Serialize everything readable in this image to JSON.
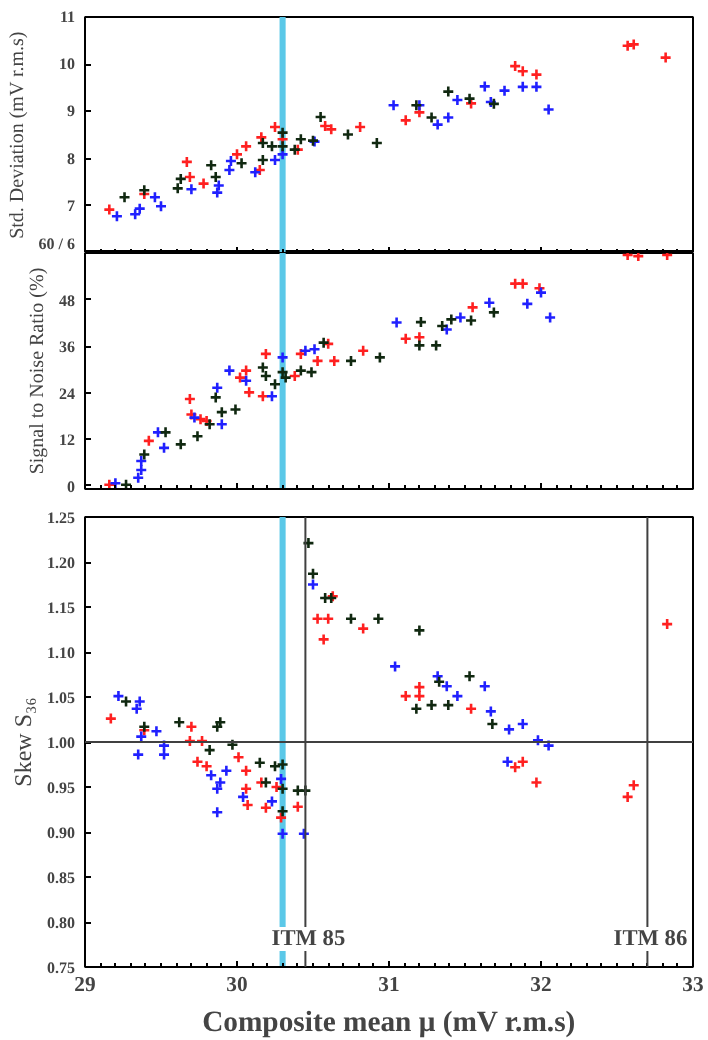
{
  "chart_data": [
    {
      "type": "scatter",
      "ylabel": "Std. Deviation (mV r.m.s)",
      "xlim": [
        29,
        33
      ],
      "ylim": [
        6,
        11
      ],
      "xticks": [
        {
          "value": 29,
          "label": null
        },
        {
          "value": 30,
          "label": null
        },
        {
          "value": 31,
          "label": null
        },
        {
          "value": 32,
          "label": null
        },
        {
          "value": 33,
          "label": null
        }
      ],
      "yticks": [
        {
          "value": 6,
          "label": "60 / 6"
        },
        7,
        8,
        9,
        10,
        11
      ],
      "tick_labels": "y",
      "grid": false,
      "marker": "cross",
      "bands": [
        {
          "axis": "x",
          "from": 30.28,
          "to": 30.32,
          "color": "#5bc8e8"
        }
      ],
      "series": [
        {
          "color": "#ff2020",
          "x": [
            29.16,
            29.39,
            29.67,
            29.69,
            29.78,
            30.0,
            30.06,
            30.15,
            30.16,
            30.25,
            30.3,
            30.4,
            30.58,
            30.62,
            30.81,
            31.11,
            31.2,
            31.54,
            31.83,
            31.88,
            31.97,
            32.57,
            32.61,
            32.82
          ],
          "values": [
            6.92,
            7.25,
            7.93,
            7.61,
            7.47,
            8.09,
            8.26,
            7.76,
            8.45,
            8.67,
            8.41,
            8.19,
            8.69,
            8.62,
            8.67,
            8.81,
            8.98,
            9.17,
            9.96,
            9.85,
            9.78,
            10.39,
            10.42,
            10.14
          ]
        },
        {
          "color": "#2020ff",
          "x": [
            29.21,
            29.33,
            29.36,
            29.46,
            29.5,
            29.7,
            29.87,
            29.88,
            29.95,
            29.96,
            30.12,
            30.25,
            30.3,
            30.51,
            31.03,
            31.2,
            31.32,
            31.39,
            31.45,
            31.63,
            31.67,
            31.76,
            31.88,
            31.97,
            32.05
          ],
          "values": [
            6.78,
            6.82,
            6.94,
            7.18,
            6.99,
            7.35,
            7.28,
            7.43,
            7.76,
            7.95,
            7.71,
            7.97,
            8.09,
            8.36,
            9.13,
            9.13,
            8.72,
            8.87,
            9.24,
            9.53,
            9.2,
            9.44,
            9.52,
            9.52,
            9.04
          ]
        },
        {
          "color": "#102810",
          "x": [
            29.26,
            29.39,
            29.61,
            29.63,
            29.83,
            29.86,
            30.03,
            30.17,
            30.17,
            30.23,
            30.3,
            30.3,
            30.38,
            30.42,
            30.5,
            30.55,
            30.73,
            30.92,
            31.18,
            31.28,
            31.39,
            31.53,
            31.69
          ],
          "values": [
            7.18,
            7.33,
            7.37,
            7.57,
            7.86,
            7.61,
            7.9,
            7.97,
            8.33,
            8.26,
            8.55,
            8.26,
            8.19,
            8.41,
            8.38,
            8.88,
            8.51,
            8.33,
            9.13,
            8.87,
            9.42,
            9.27,
            9.16
          ]
        }
      ]
    },
    {
      "type": "scatter",
      "ylabel": "Signal to Noise Ratio (%)",
      "xlim": [
        29,
        33
      ],
      "ylim": [
        -0.8,
        60
      ],
      "xticks": [
        {
          "value": 29,
          "label": null
        },
        {
          "value": 30,
          "label": null
        },
        {
          "value": 31,
          "label": null
        },
        {
          "value": 32,
          "label": null
        },
        {
          "value": 33,
          "label": null
        }
      ],
      "yticks": [
        0,
        12,
        24,
        36,
        48,
        {
          "value": 60,
          "label": null
        }
      ],
      "tick_labels": "y",
      "grid": false,
      "marker": "cross",
      "bands": [
        {
          "axis": "x",
          "from": 30.28,
          "to": 30.32,
          "color": "#5bc8e8"
        }
      ],
      "series": [
        {
          "color": "#ff2020",
          "x": [
            29.16,
            29.42,
            29.69,
            29.7,
            29.76,
            29.8,
            30.02,
            30.06,
            30.08,
            30.17,
            30.19,
            30.38,
            30.42,
            30.53,
            30.6,
            30.64,
            30.83,
            31.11,
            31.2,
            31.55,
            31.83,
            31.88,
            31.99,
            32.57,
            32.64,
            32.83
          ],
          "values": [
            0.3,
            11.6,
            22.4,
            18.4,
            17.2,
            16.7,
            27.9,
            29.7,
            24.1,
            23.1,
            34.0,
            28.3,
            34.0,
            32.2,
            36.6,
            32.2,
            34.8,
            37.9,
            38.3,
            46.0,
            52.1,
            52.1,
            50.9,
            59.5,
            59.2,
            59.5
          ]
        },
        {
          "color": "#2020ff",
          "x": [
            29.2,
            29.35,
            29.37,
            29.37,
            29.48,
            29.52,
            29.72,
            29.87,
            29.9,
            29.95,
            30.06,
            30.23,
            30.3,
            30.45,
            30.51,
            31.05,
            31.38,
            31.47,
            31.66,
            31.91,
            32.0,
            32.06
          ],
          "values": [
            0.7,
            2.1,
            4.1,
            6.4,
            13.8,
            9.8,
            17.6,
            25.3,
            15.9,
            29.7,
            27.1,
            23.1,
            33.1,
            34.8,
            35.2,
            42.1,
            40.3,
            43.4,
            47.2,
            46.9,
            49.8,
            43.4
          ]
        },
        {
          "color": "#102810",
          "x": [
            29.27,
            29.39,
            29.53,
            29.63,
            29.74,
            29.82,
            29.86,
            29.9,
            29.99,
            30.17,
            30.19,
            30.25,
            30.3,
            30.32,
            30.42,
            30.49,
            30.57,
            30.75,
            30.94,
            31.2,
            31.31,
            31.21,
            31.35,
            31.41,
            31.54,
            31.69
          ],
          "values": [
            0.3,
            8.1,
            13.8,
            10.7,
            12.8,
            15.9,
            22.8,
            19.0,
            19.7,
            30.5,
            28.3,
            26.2,
            29.3,
            27.9,
            29.7,
            29.3,
            36.9,
            32.2,
            33.1,
            36.2,
            36.2,
            42.2,
            41.2,
            42.9,
            42.6,
            44.7
          ]
        }
      ]
    },
    {
      "type": "scatter",
      "xlabel": "Composite mean μ (mV r.m.s)",
      "ylabel": "Skew S₃₆",
      "xlim": [
        29,
        33
      ],
      "ylim": [
        0.75,
        1.25
      ],
      "xticks": [
        29,
        30,
        31,
        32,
        33
      ],
      "yticks": [
        {
          "value": 0.75,
          "label": "0.75"
        },
        {
          "value": 0.8,
          "label": "0.80"
        },
        {
          "value": 0.85,
          "label": "0.85"
        },
        {
          "value": 0.9,
          "label": "0.90"
        },
        {
          "value": 0.95,
          "label": "0.95"
        },
        {
          "value": 1.0,
          "label": "1.00"
        },
        {
          "value": 1.05,
          "label": "1.05"
        },
        {
          "value": 1.1,
          "label": "1.10"
        },
        {
          "value": 1.15,
          "label": "1.15"
        },
        {
          "value": 1.2,
          "label": "1.20"
        },
        {
          "value": 1.25,
          "label": "1.25"
        }
      ],
      "grid": false,
      "marker": "cross",
      "bands": [
        {
          "axis": "x",
          "from": 30.28,
          "to": 30.32,
          "color": "#5bc8e8"
        }
      ],
      "ref_lines": [
        {
          "axis": "y",
          "value": 1.0,
          "color": "#404040"
        },
        {
          "axis": "x",
          "value": 30.45,
          "label": "ITM 85",
          "color": "#404040"
        },
        {
          "axis": "x",
          "value": 32.7,
          "label": "ITM 86",
          "color": "#404040"
        }
      ],
      "series": [
        {
          "color": "#ff2020",
          "x": [
            29.17,
            29.39,
            29.7,
            29.69,
            29.77,
            30.63,
            30.53,
            30.6,
            30.57,
            30.83,
            31.11,
            31.2,
            31.2,
            31.54,
            32.83,
            29.74,
            29.8,
            30.01,
            30.06,
            30.07,
            30.16,
            30.26,
            30.29,
            30.19,
            30.4,
            30.06,
            31.83,
            31.88,
            31.97,
            32.57,
            32.61
          ],
          "values": [
            1.026,
            1.013,
            1.017,
            1.001,
            1.001,
            1.162,
            1.137,
            1.137,
            1.114,
            1.126,
            1.051,
            1.051,
            1.061,
            1.037,
            1.131,
            0.978,
            0.973,
            0.983,
            0.948,
            0.93,
            0.955,
            0.95,
            0.916,
            0.927,
            0.928,
            0.968,
            0.972,
            0.978,
            0.955,
            0.939,
            0.952
          ]
        },
        {
          "color": "#2020ff",
          "x": [
            29.22,
            29.34,
            29.36,
            29.35,
            29.37,
            29.47,
            29.52,
            29.52,
            30.5,
            31.04,
            31.32,
            31.38,
            31.45,
            31.63,
            31.67,
            31.79,
            31.88,
            31.98,
            32.05,
            29.83,
            29.87,
            29.89,
            29.87,
            29.93,
            30.04,
            30.23,
            30.3,
            30.44,
            30.29,
            31.78
          ],
          "values": [
            1.051,
            1.037,
            1.045,
            0.986,
            1.006,
            1.012,
            0.996,
            0.986,
            1.175,
            1.084,
            1.073,
            1.062,
            1.051,
            1.062,
            1.034,
            1.014,
            1.02,
            1.002,
            0.996,
            0.963,
            0.948,
            0.955,
            0.922,
            0.968,
            0.939,
            0.934,
            0.898,
            0.898,
            0.959,
            0.978
          ]
        },
        {
          "color": "#102810",
          "x": [
            29.27,
            29.39,
            29.62,
            29.82,
            29.87,
            29.89,
            29.97,
            30.47,
            30.5,
            30.58,
            30.62,
            30.75,
            30.93,
            31.2,
            31.18,
            31.28,
            31.39,
            31.33,
            31.53,
            31.68,
            30.15,
            30.25,
            30.3,
            30.19,
            30.3,
            30.4,
            30.45,
            30.3
          ],
          "values": [
            1.045,
            1.017,
            1.022,
            0.991,
            1.017,
            1.022,
            0.997,
            1.221,
            1.187,
            1.16,
            1.16,
            1.137,
            1.137,
            1.124,
            1.037,
            1.041,
            1.041,
            1.067,
            1.073,
            1.02,
            0.977,
            0.973,
            0.975,
            0.955,
            0.948,
            0.946,
            0.946,
            0.923
          ]
        }
      ]
    }
  ]
}
